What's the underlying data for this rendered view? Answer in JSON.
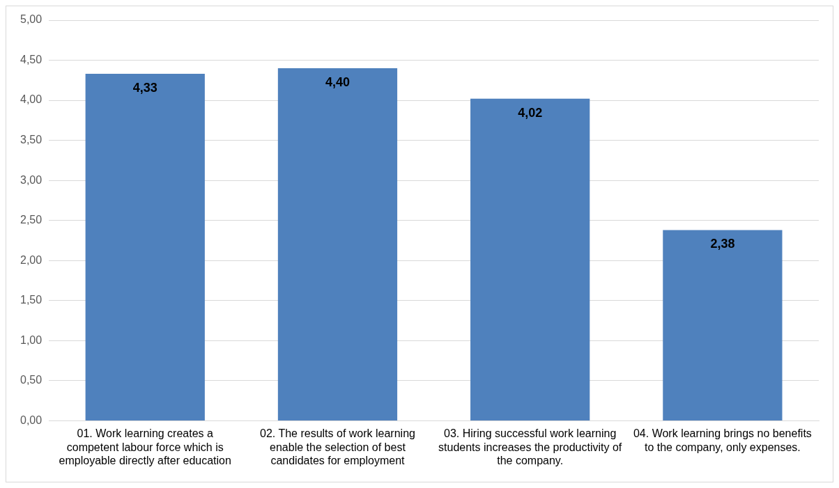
{
  "chart_data": {
    "type": "bar",
    "categories": [
      "01. Work learning creates a competent labour force which is employable directly after education",
      "02. The results of work learning enable the selection of best candidates for employment",
      "03. Hiring successful work learning students increases the productivity of the company.",
      "04. Work learning brings no benefits to the company, only expenses."
    ],
    "values": [
      4.33,
      4.4,
      4.02,
      2.38
    ],
    "value_labels": [
      "4,33",
      "4,40",
      "4,02",
      "2,38"
    ],
    "color": "#4f81bd",
    "ylim": [
      0,
      5
    ],
    "yticks": [
      {
        "value": 0,
        "label": "0,00"
      },
      {
        "value": 0.5,
        "label": "0,50"
      },
      {
        "value": 1,
        "label": "1,00"
      },
      {
        "value": 1.5,
        "label": "1,50"
      },
      {
        "value": 2,
        "label": "2,00"
      },
      {
        "value": 2.5,
        "label": "2,50"
      },
      {
        "value": 3,
        "label": "3,00"
      },
      {
        "value": 3.5,
        "label": "3,50"
      },
      {
        "value": 4,
        "label": "4,00"
      },
      {
        "value": 4.5,
        "label": "4,50"
      },
      {
        "value": 5,
        "label": "5,00"
      }
    ],
    "grid": "y"
  }
}
